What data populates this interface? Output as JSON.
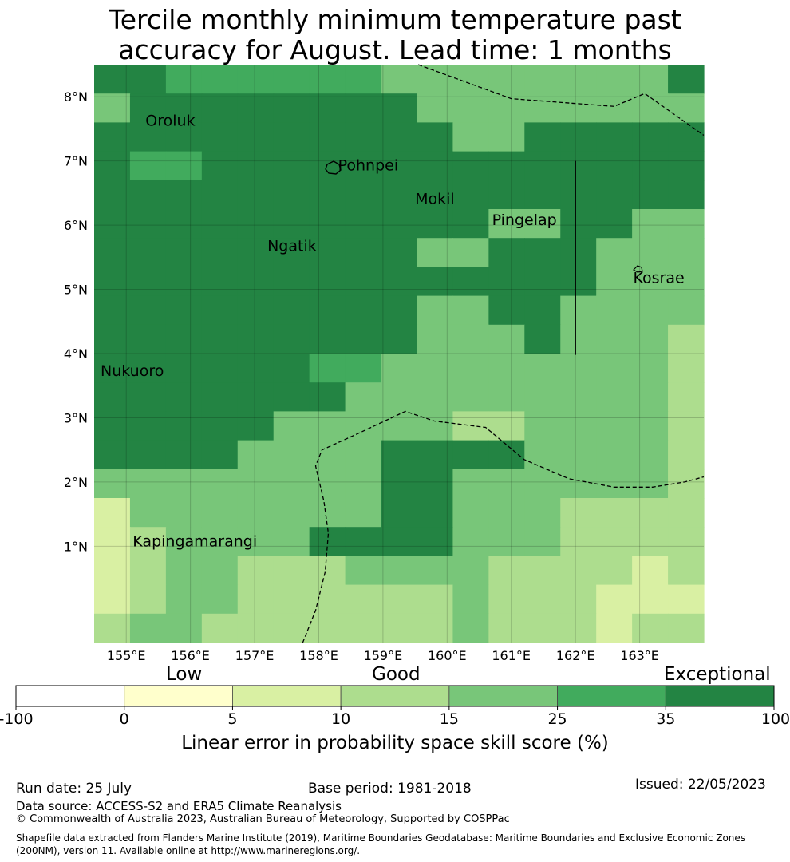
{
  "title_line1": "Tercile monthly minimum temperature past",
  "title_line2": "accuracy for August. Lead time: 1 months",
  "map": {
    "lon_range": [
      154.5,
      164.0
    ],
    "lat_range": [
      -0.5,
      8.5
    ],
    "lat_ticks": [
      "8°N",
      "7°N",
      "6°N",
      "5°N",
      "4°N",
      "3°N",
      "2°N",
      "1°N"
    ],
    "lon_ticks": [
      "155°E",
      "156°E",
      "157°E",
      "158°E",
      "159°E",
      "160°E",
      "161°E",
      "162°E",
      "163°E"
    ],
    "places": [
      {
        "name": "Oroluk",
        "lon": 155.3,
        "lat": 7.55
      },
      {
        "name": "Pohnpei",
        "lon": 158.3,
        "lat": 6.85
      },
      {
        "name": "Mokil",
        "lon": 159.5,
        "lat": 6.33
      },
      {
        "name": "Pingelap",
        "lon": 160.7,
        "lat": 6.0
      },
      {
        "name": "Ngatik",
        "lon": 157.2,
        "lat": 5.6
      },
      {
        "name": "Kosrae",
        "lon": 162.9,
        "lat": 5.1
      },
      {
        "name": "Nukuoro",
        "lon": 154.6,
        "lat": 3.65
      },
      {
        "name": "Kapingamarangi",
        "lon": 155.1,
        "lat": 1.0
      }
    ],
    "skill_grid_rows_north_to_south": [
      "66555555444444446",
      "46666666644444444",
      "66666666664466666",
      "65566666666666666",
      "66666666666666666",
      "66666666666446644",
      "66666666644666444",
      "66666666666666444",
      "66666666644664444",
      "66666666644464443",
      "66666655444444443",
      "66666664444444443",
      "66666444443344443",
      "66664444666644443",
      "44444444664444443",
      "24444444664443333",
      "23444466664443333",
      "23443334444333323",
      "23443333334333222",
      "34433333334333233"
    ]
  },
  "colorbar": {
    "bins": [
      {
        "from": "-100",
        "to": "0",
        "color": "#ffffff"
      },
      {
        "from": "0",
        "to": "5",
        "color": "#ffffcc"
      },
      {
        "from": "5",
        "to": "10",
        "color": "#d9f0a3"
      },
      {
        "from": "10",
        "to": "15",
        "color": "#addd8e"
      },
      {
        "from": "15",
        "to": "25",
        "color": "#78c679"
      },
      {
        "from": "25",
        "to": "35",
        "color": "#41ab5d"
      },
      {
        "from": "35",
        "to": "100",
        "color": "#238443"
      }
    ],
    "tick_labels": [
      "-100",
      "0",
      "5",
      "10",
      "15",
      "25",
      "35",
      "100"
    ],
    "category_labels": [
      "Low",
      "Good",
      "Exceptional"
    ],
    "title": "Linear error in probability space skill score (%)"
  },
  "footer": {
    "run_date": "Run date: 25 July",
    "base_period": "Base period: 1981-2018",
    "issued": "Issued: 22/05/2023",
    "data_source": "Data source: ACCESS-S2 and ERA5 Climate Reanalysis",
    "copyright": "© Commonwealth of Australia 2023, Australian Bureau of Meteorology, Supported by COSPPac",
    "shapefile_line1": "Shapefile data extracted from Flanders Marine Institute (2019), Maritime Boundaries Geodatabase: Maritime Boundaries and Exclusive Economic Zones",
    "shapefile_line2": "(200NM), version 11. Available online at http://www.marineregions.org/."
  }
}
